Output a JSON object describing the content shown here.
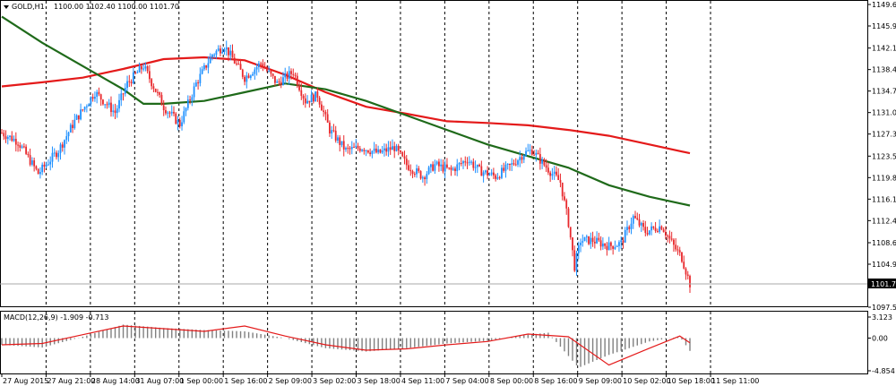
{
  "main_header": {
    "symbol_label": "GOLD,H1",
    "ohlc_label": "1100.00 1102.40 1100.00 1101.70"
  },
  "macd_header": {
    "label": "MACD(12,26,9) -1.909 -0.713"
  },
  "price_ticks": [
    "1149.60",
    "1145.90",
    "1142.10",
    "1138.40",
    "1134.70",
    "1131.00",
    "1127.30",
    "1123.50",
    "1119.80",
    "1116.10",
    "1112.40",
    "1108.60",
    "1104.90",
    "1097.50"
  ],
  "current_price_label": "1101.70",
  "macd_ticks": [
    "3.123",
    "0.00",
    "-4.854"
  ],
  "time_ticks": [
    "27 Aug 2015",
    "27 Aug 21:00",
    "28 Aug 14:00",
    "31 Aug 07:00",
    "1 Sep 00:00",
    "1 Sep 16:00",
    "2 Sep 09:00",
    "3 Sep 02:00",
    "3 Sep 18:00",
    "4 Sep 11:00",
    "7 Sep 04:00",
    "8 Sep 00:00",
    "8 Sep 16:00",
    "9 Sep 09:00",
    "10 Sep 02:00",
    "10 Sep 18:00",
    "11 Sep 11:00"
  ],
  "colors": {
    "background": "#ffffff",
    "bull_candle": "#1e90ff",
    "bear_candle": "#e8282c",
    "ma_slow": "#e41a1a",
    "ma_fast": "#1f6a1a",
    "grid": "#000000",
    "macd_hist": "#808080",
    "macd_signal": "#e41a1a"
  },
  "chart_data": [
    {
      "type": "candlestick",
      "title": "GOLD,H1",
      "ylim": [
        1097.5,
        1149.6
      ],
      "approx_close_path": [
        [
          0,
          1127.5
        ],
        [
          8,
          1126.0
        ],
        [
          18,
          1120.5
        ],
        [
          28,
          1124.5
        ],
        [
          36,
          1129.5
        ],
        [
          46,
          1134.5
        ],
        [
          56,
          1131.0
        ],
        [
          62,
          1136.0
        ],
        [
          70,
          1139.0
        ],
        [
          80,
          1132.0
        ],
        [
          88,
          1129.0
        ],
        [
          96,
          1136.0
        ],
        [
          104,
          1141.0
        ],
        [
          110,
          1142.5
        ],
        [
          120,
          1137.0
        ],
        [
          128,
          1139.5
        ],
        [
          136,
          1136.0
        ],
        [
          144,
          1138.0
        ],
        [
          150,
          1133.0
        ],
        [
          156,
          1134.0
        ],
        [
          162,
          1128.0
        ],
        [
          170,
          1124.5
        ],
        [
          178,
          1125.0
        ],
        [
          186,
          1124.0
        ],
        [
          194,
          1125.0
        ],
        [
          200,
          1122.0
        ],
        [
          208,
          1120.0
        ],
        [
          214,
          1122.0
        ],
        [
          222,
          1121.0
        ],
        [
          230,
          1123.0
        ],
        [
          236,
          1121.0
        ],
        [
          244,
          1120.0
        ],
        [
          252,
          1122.0
        ],
        [
          258,
          1124.0
        ],
        [
          262,
          1124.5
        ],
        [
          268,
          1122.0
        ],
        [
          276,
          1119.0
        ],
        [
          280,
          1112.0
        ],
        [
          283,
          1104.5
        ],
        [
          286,
          1109.0
        ],
        [
          292,
          1109.0
        ],
        [
          300,
          1108.0
        ],
        [
          306,
          1108.5
        ],
        [
          312,
          1113.0
        ],
        [
          318,
          1110.5
        ],
        [
          326,
          1111.5
        ],
        [
          332,
          1108.0
        ],
        [
          336,
          1106.0
        ],
        [
          340,
          1101.5
        ]
      ],
      "series": [
        {
          "name": "",
          "kind": "ma_slow",
          "values": [
            [
              0,
              1135.5
            ],
            [
              20,
              1136.2
            ],
            [
              40,
              1137.0
            ],
            [
              60,
              1138.5
            ],
            [
              80,
              1140.2
            ],
            [
              100,
              1140.5
            ],
            [
              120,
              1140.0
            ],
            [
              140,
              1137.5
            ],
            [
              160,
              1134.5
            ],
            [
              180,
              1132.0
            ],
            [
              200,
              1130.8
            ],
            [
              220,
              1129.5
            ],
            [
              240,
              1129.2
            ],
            [
              260,
              1128.8
            ],
            [
              280,
              1128.0
            ],
            [
              300,
              1127.0
            ],
            [
              320,
              1125.5
            ],
            [
              340,
              1124.0
            ]
          ]
        },
        {
          "name": "",
          "kind": "ma_fast",
          "values": [
            [
              0,
              1147.5
            ],
            [
              20,
              1143.0
            ],
            [
              40,
              1139.0
            ],
            [
              60,
              1135.0
            ],
            [
              70,
              1132.5
            ],
            [
              80,
              1132.5
            ],
            [
              100,
              1133.0
            ],
            [
              120,
              1134.5
            ],
            [
              140,
              1136.0
            ],
            [
              160,
              1135.0
            ],
            [
              180,
              1133.0
            ],
            [
              200,
              1130.5
            ],
            [
              220,
              1128.0
            ],
            [
              240,
              1125.5
            ],
            [
              260,
              1123.5
            ],
            [
              280,
              1121.5
            ],
            [
              300,
              1118.5
            ],
            [
              320,
              1116.5
            ],
            [
              340,
              1115.0
            ]
          ]
        }
      ]
    },
    {
      "type": "bar",
      "title": "MACD(12,26,9) -1.909 -0.713",
      "ylim": [
        -4.854,
        3.123
      ],
      "histogram_path": [
        [
          0,
          -1.0
        ],
        [
          20,
          -1.4
        ],
        [
          40,
          0.2
        ],
        [
          60,
          2.0
        ],
        [
          80,
          1.5
        ],
        [
          100,
          1.2
        ],
        [
          120,
          1.0
        ],
        [
          140,
          0.0
        ],
        [
          160,
          -1.5
        ],
        [
          180,
          -2.0
        ],
        [
          200,
          -1.5
        ],
        [
          220,
          -0.8
        ],
        [
          240,
          -0.4
        ],
        [
          260,
          0.5
        ],
        [
          270,
          0.8
        ],
        [
          285,
          -4.4
        ],
        [
          300,
          -2.5
        ],
        [
          320,
          -0.5
        ],
        [
          335,
          0.2
        ],
        [
          340,
          -1.9
        ]
      ],
      "series": [
        {
          "name": "",
          "kind": "signal",
          "values": [
            [
              0,
              -1.0
            ],
            [
              20,
              -0.8
            ],
            [
              40,
              0.5
            ],
            [
              60,
              1.8
            ],
            [
              80,
              1.4
            ],
            [
              100,
              1.0
            ],
            [
              120,
              1.8
            ],
            [
              140,
              0.3
            ],
            [
              160,
              -1.0
            ],
            [
              180,
              -1.8
            ],
            [
              200,
              -1.6
            ],
            [
              220,
              -1.0
            ],
            [
              240,
              -0.5
            ],
            [
              260,
              0.6
            ],
            [
              280,
              0.2
            ],
            [
              300,
              -4.0
            ],
            [
              320,
              -1.5
            ],
            [
              335,
              0.3
            ],
            [
              340,
              -0.7
            ]
          ]
        }
      ]
    }
  ]
}
